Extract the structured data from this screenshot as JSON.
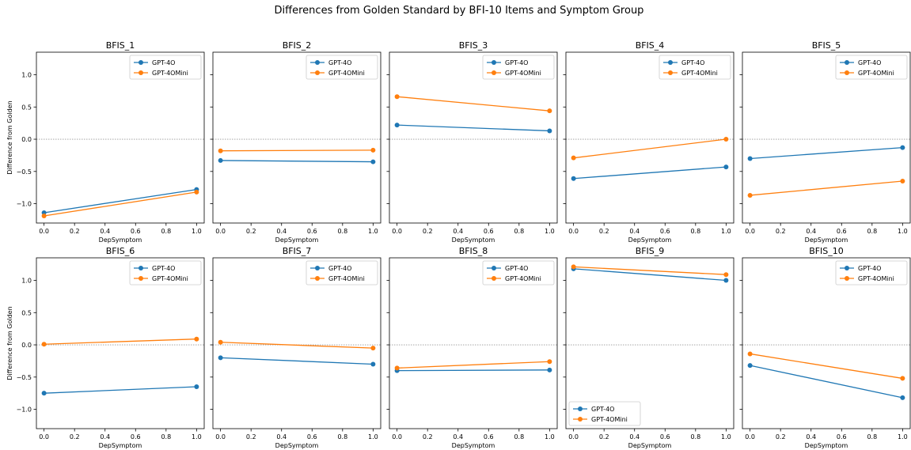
{
  "figure": {
    "suptitle": "Differences from Golden Standard by BFI-10 Items and Symptom Group"
  },
  "colors": {
    "GPT-4O": "#1f77b4",
    "GPT-4OMini": "#ff7f0e",
    "zeroline": "#999999"
  },
  "chart_data": [
    {
      "type": "line",
      "title": "BFIS_1",
      "xlabel": "DepSymptom",
      "ylabel": "Difference from Golden",
      "x": [
        0,
        1
      ],
      "xlim": [
        -0.05,
        1.05
      ],
      "ylim": [
        -1.3,
        1.35
      ],
      "xticks": [
        "0.0",
        "0.2",
        "0.4",
        "0.6",
        "0.8",
        "1.0"
      ],
      "yticks": [
        "1.0",
        "0.5",
        "0.0",
        "−0.5",
        "−1.0"
      ],
      "legend": "top-right",
      "grid": false,
      "series": [
        {
          "name": "GPT-4O",
          "values": [
            -1.14,
            -0.78
          ]
        },
        {
          "name": "GPT-4OMini",
          "values": [
            -1.19,
            -0.82
          ]
        }
      ]
    },
    {
      "type": "line",
      "title": "BFIS_2",
      "xlabel": "DepSymptom",
      "ylabel": "",
      "x": [
        0,
        1
      ],
      "xlim": [
        -0.05,
        1.05
      ],
      "ylim": [
        -1.3,
        1.35
      ],
      "xticks": [
        "0.0",
        "0.2",
        "0.4",
        "0.6",
        "0.8",
        "1.0"
      ],
      "yticks": [],
      "legend": "top-right",
      "grid": false,
      "series": [
        {
          "name": "GPT-4O",
          "values": [
            -0.33,
            -0.35
          ]
        },
        {
          "name": "GPT-4OMini",
          "values": [
            -0.18,
            -0.17
          ]
        }
      ]
    },
    {
      "type": "line",
      "title": "BFIS_3",
      "xlabel": "DepSymptom",
      "ylabel": "",
      "x": [
        0,
        1
      ],
      "xlim": [
        -0.05,
        1.05
      ],
      "ylim": [
        -1.3,
        1.35
      ],
      "xticks": [
        "0.0",
        "0.2",
        "0.4",
        "0.6",
        "0.8",
        "1.0"
      ],
      "yticks": [],
      "legend": "top-right",
      "grid": false,
      "series": [
        {
          "name": "GPT-4O",
          "values": [
            0.22,
            0.13
          ]
        },
        {
          "name": "GPT-4OMini",
          "values": [
            0.66,
            0.44
          ]
        }
      ]
    },
    {
      "type": "line",
      "title": "BFIS_4",
      "xlabel": "DepSymptom",
      "ylabel": "",
      "x": [
        0,
        1
      ],
      "xlim": [
        -0.05,
        1.05
      ],
      "ylim": [
        -1.3,
        1.35
      ],
      "xticks": [
        "0.0",
        "0.2",
        "0.4",
        "0.6",
        "0.8",
        "1.0"
      ],
      "yticks": [],
      "legend": "top-right",
      "grid": false,
      "series": [
        {
          "name": "GPT-4O",
          "values": [
            -0.61,
            -0.43
          ]
        },
        {
          "name": "GPT-4OMini",
          "values": [
            -0.29,
            0.0
          ]
        }
      ]
    },
    {
      "type": "line",
      "title": "BFIS_5",
      "xlabel": "DepSymptom",
      "ylabel": "",
      "x": [
        0,
        1
      ],
      "xlim": [
        -0.05,
        1.05
      ],
      "ylim": [
        -1.3,
        1.35
      ],
      "xticks": [
        "0.0",
        "0.2",
        "0.4",
        "0.6",
        "0.8",
        "1.0"
      ],
      "yticks": [],
      "legend": "top-right",
      "grid": false,
      "series": [
        {
          "name": "GPT-4O",
          "values": [
            -0.3,
            -0.13
          ]
        },
        {
          "name": "GPT-4OMini",
          "values": [
            -0.87,
            -0.65
          ]
        }
      ]
    },
    {
      "type": "line",
      "title": "BFIS_6",
      "xlabel": "DepSymptom",
      "ylabel": "Difference from Golden",
      "x": [
        0,
        1
      ],
      "xlim": [
        -0.05,
        1.05
      ],
      "ylim": [
        -1.3,
        1.35
      ],
      "xticks": [
        "0.0",
        "0.2",
        "0.4",
        "0.6",
        "0.8",
        "1.0"
      ],
      "yticks": [
        "1.0",
        "0.5",
        "0.0",
        "−0.5",
        "−1.0"
      ],
      "legend": "top-right",
      "grid": false,
      "series": [
        {
          "name": "GPT-4O",
          "values": [
            -0.75,
            -0.65
          ]
        },
        {
          "name": "GPT-4OMini",
          "values": [
            0.01,
            0.09
          ]
        }
      ]
    },
    {
      "type": "line",
      "title": "BFIS_7",
      "xlabel": "DepSymptom",
      "ylabel": "",
      "x": [
        0,
        1
      ],
      "xlim": [
        -0.05,
        1.05
      ],
      "ylim": [
        -1.3,
        1.35
      ],
      "xticks": [
        "0.0",
        "0.2",
        "0.4",
        "0.6",
        "0.8",
        "1.0"
      ],
      "yticks": [],
      "legend": "top-right",
      "grid": false,
      "series": [
        {
          "name": "GPT-4O",
          "values": [
            -0.2,
            -0.3
          ]
        },
        {
          "name": "GPT-4OMini",
          "values": [
            0.04,
            -0.05
          ]
        }
      ]
    },
    {
      "type": "line",
      "title": "BFIS_8",
      "xlabel": "DepSymptom",
      "ylabel": "",
      "x": [
        0,
        1
      ],
      "xlim": [
        -0.05,
        1.05
      ],
      "ylim": [
        -1.3,
        1.35
      ],
      "xticks": [
        "0.0",
        "0.2",
        "0.4",
        "0.6",
        "0.8",
        "1.0"
      ],
      "yticks": [],
      "legend": "top-right",
      "grid": false,
      "series": [
        {
          "name": "GPT-4O",
          "values": [
            -0.4,
            -0.39
          ]
        },
        {
          "name": "GPT-4OMini",
          "values": [
            -0.36,
            -0.26
          ]
        }
      ]
    },
    {
      "type": "line",
      "title": "BFIS_9",
      "xlabel": "DepSymptom",
      "ylabel": "",
      "x": [
        0,
        1
      ],
      "xlim": [
        -0.05,
        1.05
      ],
      "ylim": [
        -1.3,
        1.35
      ],
      "xticks": [
        "0.0",
        "0.2",
        "0.4",
        "0.6",
        "0.8",
        "1.0"
      ],
      "yticks": [],
      "legend": "bottom-left",
      "grid": false,
      "series": [
        {
          "name": "GPT-4O",
          "values": [
            1.18,
            1.0
          ]
        },
        {
          "name": "GPT-4OMini",
          "values": [
            1.21,
            1.09
          ]
        }
      ]
    },
    {
      "type": "line",
      "title": "BFIS_10",
      "xlabel": "DepSymptom",
      "ylabel": "",
      "x": [
        0,
        1
      ],
      "xlim": [
        -0.05,
        1.05
      ],
      "ylim": [
        -1.3,
        1.35
      ],
      "xticks": [
        "0.0",
        "0.2",
        "0.4",
        "0.6",
        "0.8",
        "1.0"
      ],
      "yticks": [],
      "legend": "top-right",
      "grid": false,
      "series": [
        {
          "name": "GPT-4O",
          "values": [
            -0.32,
            -0.82
          ]
        },
        {
          "name": "GPT-4OMini",
          "values": [
            -0.14,
            -0.52
          ]
        }
      ]
    }
  ]
}
